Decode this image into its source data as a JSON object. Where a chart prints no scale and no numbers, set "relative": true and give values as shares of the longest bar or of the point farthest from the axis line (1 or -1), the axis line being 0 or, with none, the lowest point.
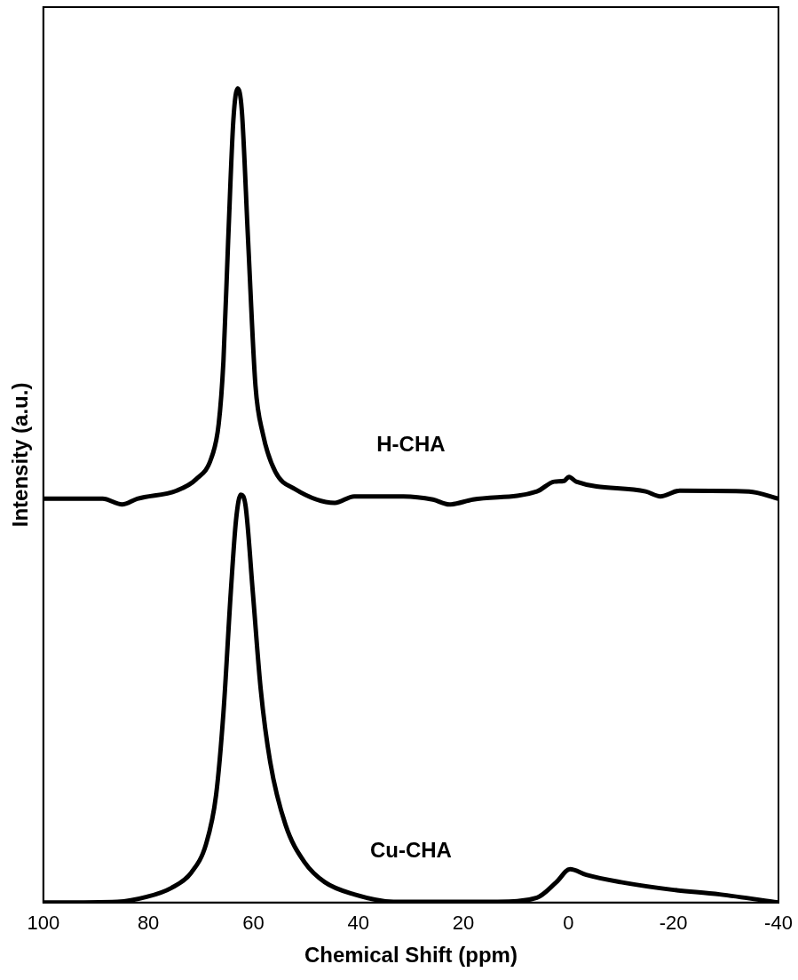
{
  "chart_data": {
    "type": "line",
    "xlabel": "Chemical Shift (ppm)",
    "ylabel": "Intensity (a.u.)",
    "relative": true,
    "xlim": [
      100,
      -40
    ],
    "xticks": [
      100,
      80,
      60,
      40,
      20,
      0,
      -20,
      -40
    ],
    "grid": false,
    "legend": false,
    "marker": "none",
    "line_style": "solid",
    "series": [
      {
        "name": "H-CHA",
        "color": "#000000",
        "x": [
          100,
          88.7,
          85,
          82.1,
          74.6,
          70.9,
          68,
          66.6,
          65.7,
          64.8,
          63.8,
          63,
          62.2,
          61,
          59.6,
          58.2,
          55.8,
          52.1,
          44.5,
          40.8,
          31.4,
          25.8,
          22.7,
          18.2,
          6,
          2.7,
          0.8,
          -0.1,
          -1.5,
          -14.7,
          -17.5,
          -21.2,
          -34.4,
          -40
        ],
        "values": [
          0.496,
          0.496,
          0.489,
          0.496,
          0.506,
          0.52,
          0.546,
          0.588,
          0.665,
          0.813,
          0.962,
          1,
          0.973,
          0.813,
          0.635,
          0.576,
          0.529,
          0.508,
          0.491,
          0.499,
          0.499,
          0.495,
          0.489,
          0.495,
          0.505,
          0.517,
          0.518,
          0.523,
          0.517,
          0.505,
          0.499,
          0.506,
          0.505,
          0.496
        ]
      },
      {
        "name": "Cu-CHA",
        "color": "#000000",
        "x": [
          100,
          85.9,
          80.3,
          75.6,
          71.8,
          69,
          67.1,
          65.7,
          64.3,
          63.3,
          62.4,
          61.5,
          60.1,
          58.6,
          56.8,
          53.9,
          50.2,
          46.4,
          40.8,
          33.3,
          13.5,
          6,
          2.3,
          -0.3,
          -3.4,
          -10,
          -19.4,
          -28.8,
          -40
        ],
        "values": [
          0,
          0.001,
          0.007,
          0.018,
          0.037,
          0.072,
          0.132,
          0.233,
          0.381,
          0.47,
          0.501,
          0.488,
          0.381,
          0.262,
          0.173,
          0.096,
          0.049,
          0.025,
          0.01,
          0.001,
          0.001,
          0.006,
          0.025,
          0.041,
          0.034,
          0.025,
          0.016,
          0.01,
          0
        ]
      }
    ]
  }
}
